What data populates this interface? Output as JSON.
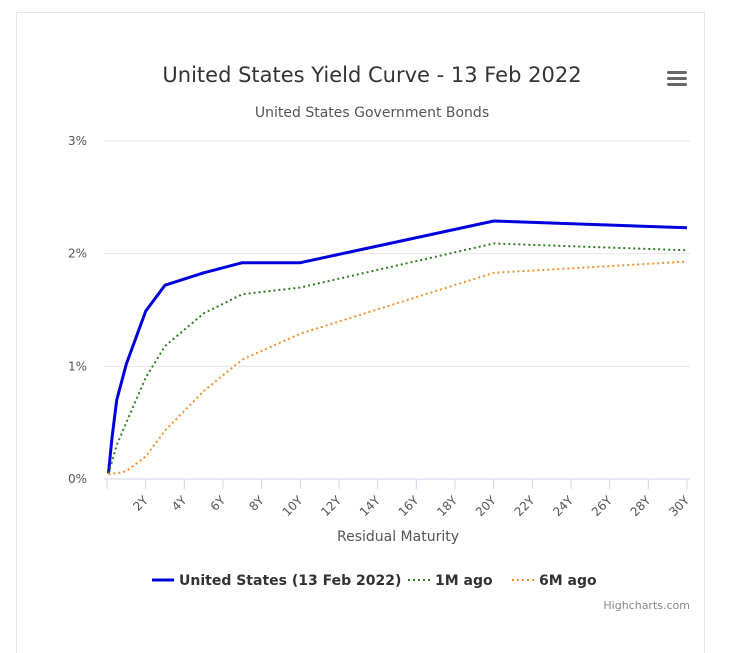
{
  "chart_data": {
    "type": "line",
    "title": "United States Yield Curve - 13 Feb 2022",
    "subtitle": "United States Government Bonds",
    "xlabel": "Residual Maturity",
    "ylabel": "",
    "x_range_years": [
      0,
      30
    ],
    "ylim": [
      0,
      3
    ],
    "y_ticks": [
      {
        "value": 0,
        "label": "0%"
      },
      {
        "value": 1,
        "label": "1%"
      },
      {
        "value": 2,
        "label": "2%"
      },
      {
        "value": 3,
        "label": "3%"
      }
    ],
    "x_ticks": [
      {
        "value": 2,
        "label": "2Y"
      },
      {
        "value": 4,
        "label": "4Y"
      },
      {
        "value": 6,
        "label": "6Y"
      },
      {
        "value": 8,
        "label": "8Y"
      },
      {
        "value": 10,
        "label": "10Y"
      },
      {
        "value": 12,
        "label": "12Y"
      },
      {
        "value": 14,
        "label": "14Y"
      },
      {
        "value": 16,
        "label": "16Y"
      },
      {
        "value": 18,
        "label": "18Y"
      },
      {
        "value": 20,
        "label": "20Y"
      },
      {
        "value": 22,
        "label": "22Y"
      },
      {
        "value": 24,
        "label": "24Y"
      },
      {
        "value": 26,
        "label": "26Y"
      },
      {
        "value": 28,
        "label": "28Y"
      },
      {
        "value": 30,
        "label": "30Y"
      }
    ],
    "grid": true,
    "legend_position": "bottom-center",
    "series": [
      {
        "name": "United States (13 Feb 2022)",
        "color": "#0000dd",
        "style": "solid",
        "points": [
          [
            0.08,
            0.05
          ],
          [
            0.25,
            0.35
          ],
          [
            0.5,
            0.7
          ],
          [
            1,
            1.02
          ],
          [
            2,
            1.49
          ],
          [
            3,
            1.72
          ],
          [
            5,
            1.83
          ],
          [
            7,
            1.92
          ],
          [
            10,
            1.92
          ],
          [
            20,
            2.29
          ],
          [
            30,
            2.23
          ]
        ]
      },
      {
        "name": "1M ago",
        "color": "#2e7d1e",
        "style": "dotted",
        "points": [
          [
            0.08,
            0.05
          ],
          [
            0.25,
            0.15
          ],
          [
            0.5,
            0.3
          ],
          [
            1,
            0.5
          ],
          [
            2,
            0.9
          ],
          [
            3,
            1.18
          ],
          [
            5,
            1.47
          ],
          [
            7,
            1.64
          ],
          [
            10,
            1.7
          ],
          [
            20,
            2.09
          ],
          [
            30,
            2.03
          ]
        ]
      },
      {
        "name": "6M ago",
        "color": "#f0902a",
        "style": "dotted",
        "points": [
          [
            0.08,
            0.04
          ],
          [
            0.25,
            0.05
          ],
          [
            0.5,
            0.05
          ],
          [
            1,
            0.07
          ],
          [
            2,
            0.2
          ],
          [
            3,
            0.43
          ],
          [
            5,
            0.78
          ],
          [
            7,
            1.06
          ],
          [
            10,
            1.29
          ],
          [
            20,
            1.83
          ],
          [
            30,
            1.93
          ]
        ]
      }
    ]
  },
  "menu_icon": "hamburger-menu-icon",
  "credits": "Highcharts.com"
}
